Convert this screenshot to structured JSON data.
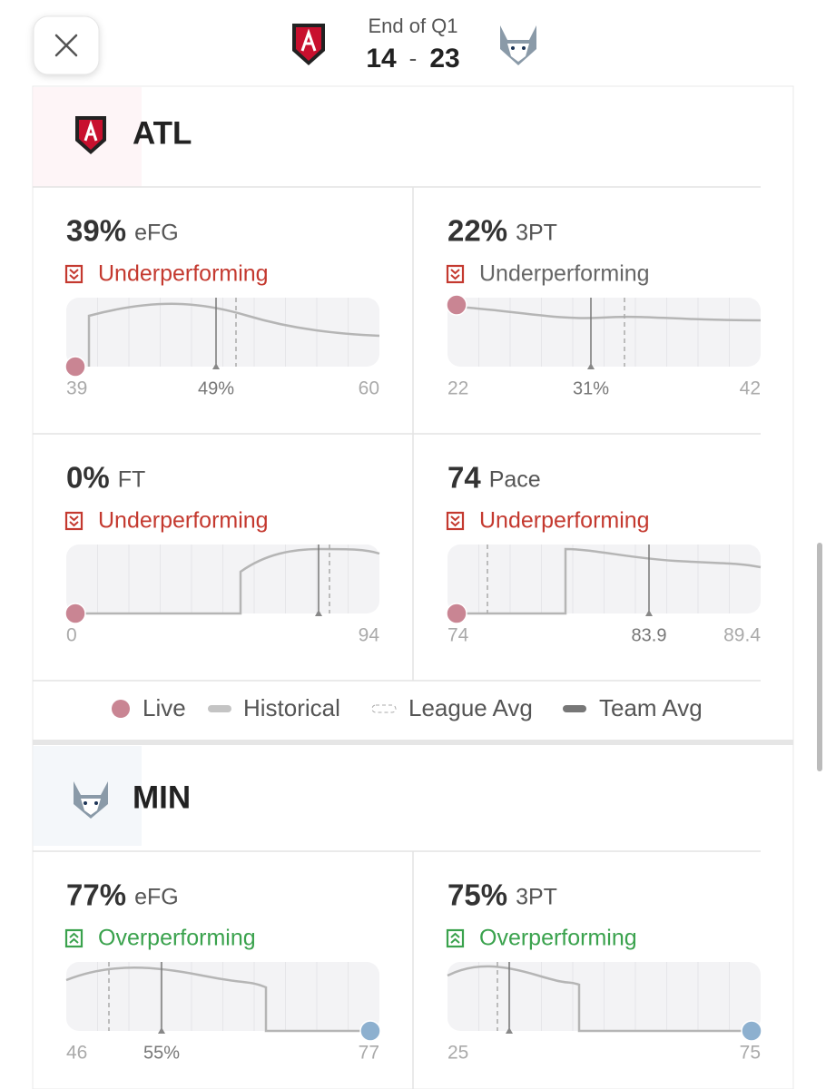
{
  "header": {
    "period": "End of Q1",
    "score_home": "14",
    "score_sep": "-",
    "score_away": "23"
  },
  "teams": [
    {
      "name": "ATL",
      "cards": [
        {
          "value": "39%",
          "metric": "eFG",
          "status": "Underperforming",
          "axis": {
            "min": "39",
            "avg": "49%",
            "max": "60"
          }
        },
        {
          "value": "22%",
          "metric": "3PT",
          "status": "Underperforming",
          "axis": {
            "min": "22",
            "avg": "31%",
            "max": "42"
          }
        },
        {
          "value": "0%",
          "metric": "FT",
          "status": "Underperforming",
          "axis": {
            "min": "0",
            "max": "94"
          }
        },
        {
          "value": "74",
          "metric": "Pace",
          "status": "Underperforming",
          "axis": {
            "min": "74",
            "avg": "83.9",
            "max": "89.4"
          }
        }
      ]
    },
    {
      "name": "MIN",
      "cards": [
        {
          "value": "77%",
          "metric": "eFG",
          "status": "Overperforming",
          "axis": {
            "min": "46",
            "avg": "55%",
            "max": "77"
          }
        },
        {
          "value": "75%",
          "metric": "3PT",
          "status": "Overperforming",
          "axis": {
            "min": "25",
            "max": "75"
          }
        }
      ]
    }
  ],
  "legend": [
    "Live",
    "Historical",
    "League Avg",
    "Team Avg"
  ]
}
